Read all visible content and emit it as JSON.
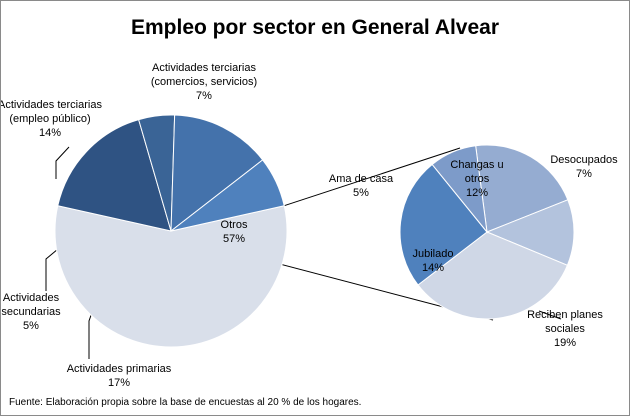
{
  "chart_data": {
    "type": "pie",
    "title": "Empleo por sector en General Alvear",
    "main_pie": {
      "slices": [
        {
          "name": "Otros",
          "value": 57,
          "label_lines": [
            "Otros",
            "57%"
          ],
          "color": "#d9dfea"
        },
        {
          "name": "Actividades primarias",
          "value": 17,
          "label_lines": [
            "Actividades primarias",
            "17%"
          ],
          "color": "#2f5383"
        },
        {
          "name": "Actividades secundarias",
          "value": 5,
          "label_lines": [
            "Actividades",
            "secundarias",
            "5%"
          ],
          "color": "#3a6496"
        },
        {
          "name": "Actividades terciarias (empleo público)",
          "value": 14,
          "label_lines": [
            "Actividades terciarias",
            "(empleo público)",
            "14%"
          ],
          "color": "#4472ab"
        },
        {
          "name": "Actividades terciarias (comercios, servicios)",
          "value": 7,
          "label_lines": [
            "Actividades terciarias",
            "(comercios, servicios)",
            "7%"
          ],
          "color": "#4f81bd"
        }
      ]
    },
    "secondary_pie": {
      "slices": [
        {
          "name": "Changas u otros",
          "value": 12,
          "label_lines": [
            "Changas u",
            "otros",
            "12%"
          ],
          "color": "#95acd1"
        },
        {
          "name": "Desocupados",
          "value": 7,
          "label_lines": [
            "Desocupados",
            "7%"
          ],
          "color": "#b3c3dd"
        },
        {
          "name": "Reciben planes sociales",
          "value": 19,
          "label_lines": [
            "Reciben planes",
            "sociales",
            "19%"
          ],
          "color": "#cfd7e6"
        },
        {
          "name": "Jubilado",
          "value": 14,
          "label_lines": [
            "Jubilado",
            "14%"
          ],
          "color": "#4f81bd"
        },
        {
          "name": "Ama de casa",
          "value": 5,
          "label_lines": [
            "Ama de casa",
            "5%"
          ],
          "color": "#7d9bc9"
        }
      ]
    },
    "source_note": "Fuente: Elaboración propia sobre la base de encuestas al 20 %  de los hogares."
  }
}
